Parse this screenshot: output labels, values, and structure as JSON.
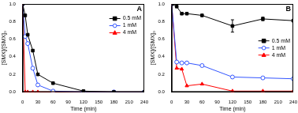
{
  "chart_data": [
    {
      "type": "line",
      "title": "A",
      "x_label": "Time (min)",
      "y_label": "[SMX]/[SMX]₀",
      "xlim": [
        0,
        240
      ],
      "xticks": [
        0,
        30,
        60,
        90,
        120,
        150,
        180,
        210,
        240
      ],
      "ylim": [
        0,
        1
      ],
      "yticks": [
        {
          "value": 0,
          "label": "0.0"
        },
        {
          "value": 0.2,
          "label": "0.2"
        },
        {
          "value": 0.4,
          "label": "0.4"
        },
        {
          "value": 0.6,
          "label": "0.6"
        },
        {
          "value": 0.8,
          "label": "0.8"
        },
        {
          "value": 1,
          "label": "1.0"
        }
      ],
      "grid": false,
      "legend": "upper right",
      "series": [
        {
          "name": "0.5 mM",
          "color": "#000000",
          "marker": "square",
          "x": [
            0,
            5,
            10,
            20,
            30,
            60,
            120,
            180,
            240
          ],
          "values": [
            1.0,
            0.87,
            0.65,
            0.47,
            0.2,
            0.1,
            0.01,
            0.0,
            0.0
          ]
        },
        {
          "name": "1 mM",
          "color": "#3355ff",
          "marker": "circle_open",
          "x": [
            0,
            5,
            10,
            20,
            30,
            60,
            120,
            180,
            240
          ],
          "values": [
            1.0,
            0.63,
            0.55,
            0.27,
            0.08,
            0.01,
            0.0,
            0.0,
            0.0
          ]
        },
        {
          "name": "4 mM",
          "color": "#ff0000",
          "marker": "triangle",
          "x": [
            0,
            5,
            10,
            20,
            30,
            60,
            120,
            180,
            240
          ],
          "values": [
            1.0,
            0.0,
            0.0,
            0.0,
            0.0,
            0.0,
            0.0,
            0.0,
            0.0
          ]
        }
      ]
    },
    {
      "type": "line",
      "title": "B",
      "x_label": "Time (min)",
      "y_label": "[SMX]/[SMX]₀",
      "xlim": [
        0,
        240
      ],
      "xticks": [
        0,
        30,
        60,
        90,
        120,
        150,
        180,
        210,
        240
      ],
      "ylim": [
        0,
        1
      ],
      "yticks": [
        {
          "value": 0,
          "label": "0.0"
        },
        {
          "value": 0.2,
          "label": "0.2"
        },
        {
          "value": 0.4,
          "label": "0.4"
        },
        {
          "value": 0.6,
          "label": "0.6"
        },
        {
          "value": 0.8,
          "label": "0.8"
        },
        {
          "value": 1,
          "label": "1.0"
        }
      ],
      "grid": false,
      "legend": "center right",
      "series": [
        {
          "name": "0.5 mM",
          "color": "#000000",
          "marker": "square",
          "x": [
            0,
            10,
            20,
            30,
            60,
            120,
            180,
            240
          ],
          "values": [
            1.0,
            0.97,
            0.89,
            0.89,
            0.87,
            0.75,
            0.83,
            0.81
          ],
          "errors": [
            null,
            null,
            null,
            null,
            null,
            0.07,
            0.02,
            null
          ]
        },
        {
          "name": "1 mM",
          "color": "#3355ff",
          "marker": "circle_open",
          "x": [
            0,
            10,
            20,
            30,
            60,
            120,
            180,
            240
          ],
          "values": [
            1.0,
            0.34,
            0.33,
            0.33,
            0.3,
            0.17,
            0.16,
            0.15
          ]
        },
        {
          "name": "4 mM",
          "color": "#ff0000",
          "marker": "triangle",
          "x": [
            0,
            10,
            20,
            30,
            60,
            120,
            180,
            240
          ],
          "values": [
            1.0,
            0.27,
            0.26,
            0.07,
            0.09,
            0.01,
            0.01,
            0.01
          ]
        }
      ]
    }
  ]
}
